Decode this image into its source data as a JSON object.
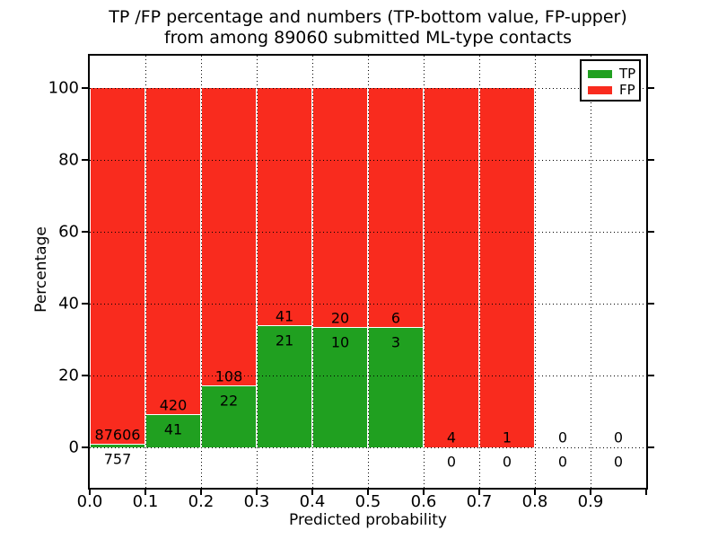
{
  "figure": {
    "title_line1": "TP /FP percentage and numbers (TP-bottom value, FP-upper)",
    "title_line2": "from among 89060 submitted ML-type contacts"
  },
  "chart_data": {
    "type": "bar",
    "stacked": true,
    "unit": "percent",
    "title": "TP /FP percentage and numbers (TP-bottom value, FP-upper) from among 89060 submitted ML-type contacts",
    "xlabel": "Predicted probability",
    "ylabel": "Percentage",
    "xlim": [
      0.0,
      1.0
    ],
    "ylim": [
      -11.25,
      109
    ],
    "grid": "dotted",
    "total_contacts": 89060,
    "categories": [
      "0.0-0.1",
      "0.1-0.2",
      "0.2-0.3",
      "0.3-0.4",
      "0.4-0.5",
      "0.5-0.6",
      "0.6-0.7",
      "0.7-0.8",
      "0.8-0.9",
      "0.9-1.0"
    ],
    "x_tick_labels": [
      "0.0",
      "0.1",
      "0.2",
      "0.3",
      "0.4",
      "0.5",
      "0.6",
      "0.7",
      "0.8",
      "0.9"
    ],
    "y_tick_values": [
      0,
      20,
      40,
      60,
      80,
      100
    ],
    "y_tick_labels": [
      "0",
      "20",
      "40",
      "60",
      "80",
      "100"
    ],
    "series": [
      {
        "name": "TP",
        "color": "#20a020",
        "counts": [
          757,
          41,
          22,
          21,
          10,
          3,
          0,
          0,
          0,
          0
        ]
      },
      {
        "name": "FP",
        "color": "#f92b1e",
        "counts": [
          87606,
          420,
          108,
          41,
          20,
          6,
          4,
          1,
          0,
          0
        ]
      }
    ],
    "tp_percent_per_bin": [
      0.86,
      8.89,
      16.92,
      33.87,
      33.33,
      33.33,
      0.0,
      0.0,
      null,
      null
    ],
    "annotation_rule": "FP count printed just above the TP/FP boundary, TP count just below it; bins with no contacts show 0 / 0",
    "legend": {
      "position": "upper right",
      "entries": [
        {
          "label": "TP",
          "color": "#20a020"
        },
        {
          "label": "FP",
          "color": "#f92b1e"
        }
      ]
    }
  },
  "colors": {
    "tp_green": "#20a020",
    "fp_red": "#f92b1e",
    "grid": "#000000",
    "text": "#000000",
    "background": "#ffffff"
  }
}
